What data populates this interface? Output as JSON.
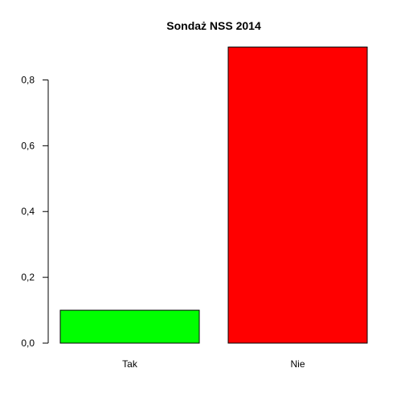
{
  "chart_data": {
    "type": "bar",
    "title": "Sondaż NSS 2014",
    "categories": [
      "Tak",
      "Nie"
    ],
    "values": [
      0.1,
      0.9
    ],
    "colors": [
      "#00ff00",
      "#ff0000"
    ],
    "ylim": [
      0,
      0.9
    ],
    "yticks": [
      0,
      0.2,
      0.4,
      0.6,
      0.8
    ],
    "ytick_labels": [
      "0,0",
      "0,2",
      "0,4",
      "0,6",
      "0,8"
    ],
    "xlabel": "",
    "ylabel": "",
    "grid": false,
    "legend": "none"
  }
}
